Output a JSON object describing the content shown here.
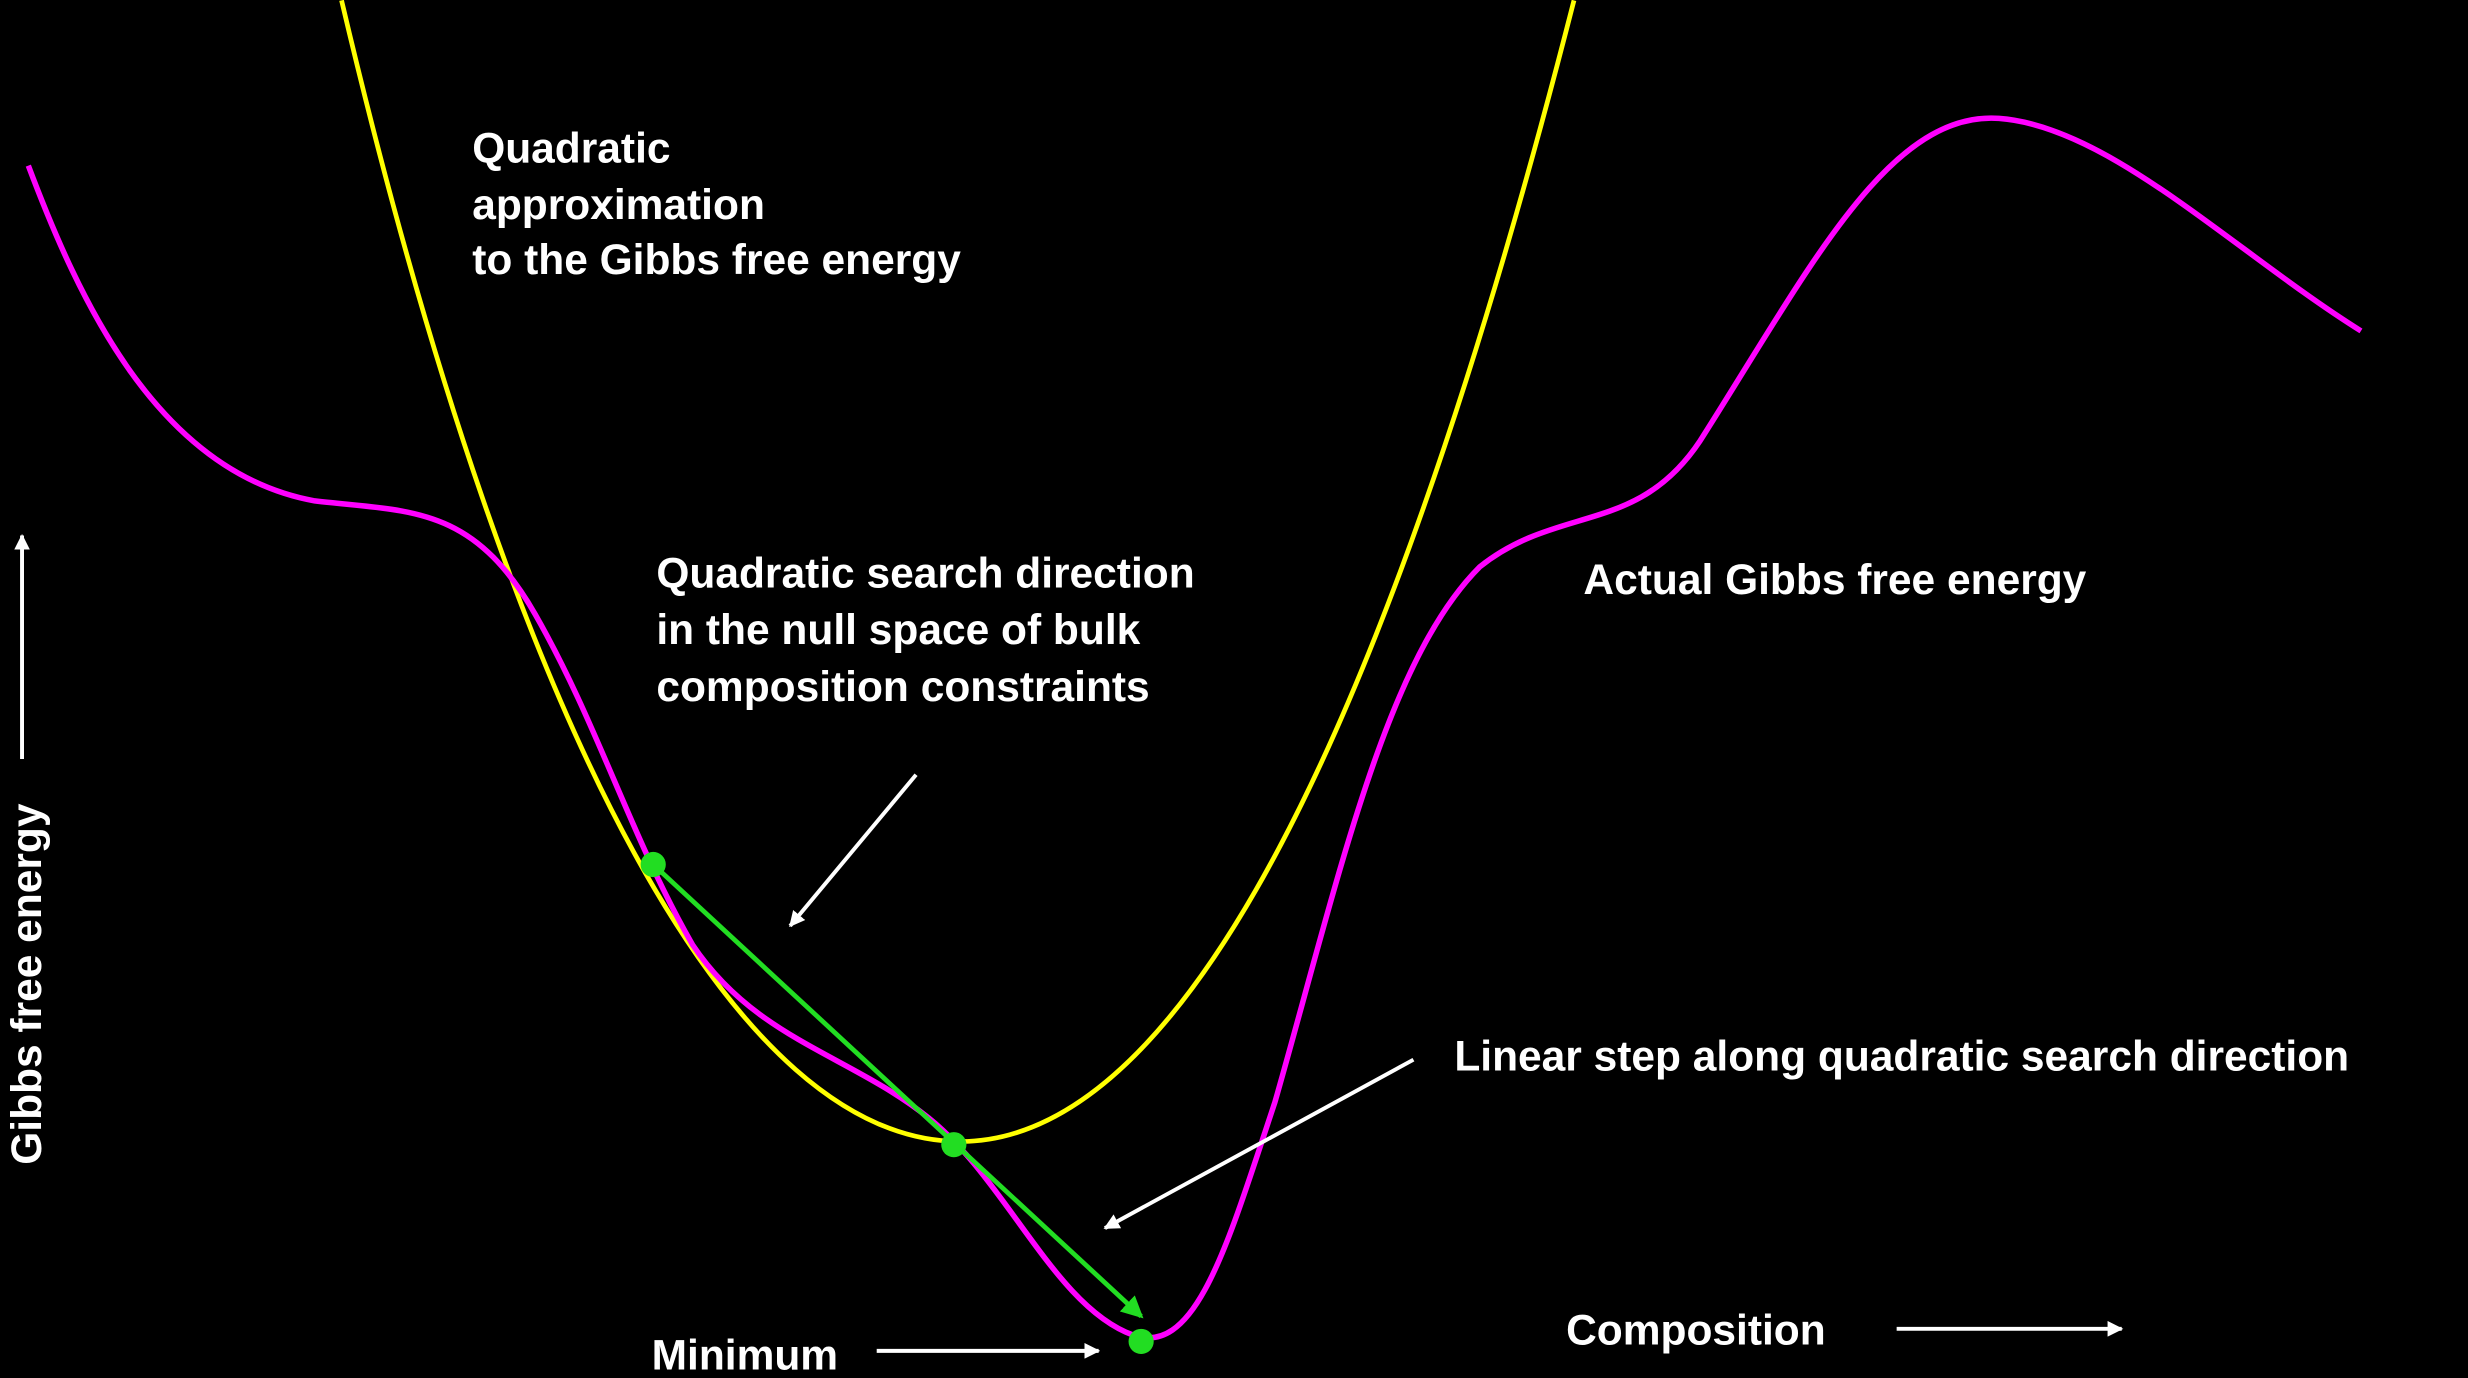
{
  "labels": {
    "quadratic": [
      "Quadratic",
      "approximation",
      "to the Gibbs free energy"
    ],
    "search": [
      "Quadratic search direction",
      "in the null space of bulk",
      "composition constraints"
    ],
    "actual": "Actual Gibbs free energy",
    "linear": "Linear step along quadratic search direction",
    "minimum": "Minimum",
    "composition": "Composition",
    "y_axis": "Gibbs free energy"
  }
}
